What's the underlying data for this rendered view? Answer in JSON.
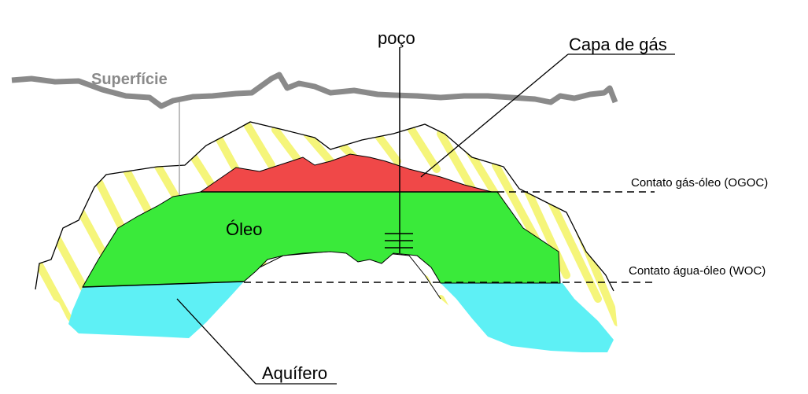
{
  "labels": {
    "surface": "Superfície",
    "well": "poço",
    "gas_cap": "Capa de gás",
    "oil": "Óleo",
    "gas_oil_contact": "Contato gás-óleo (OGOC)",
    "water_oil_contact": "Contato água-óleo (WOC)",
    "aquifer": "Aquífero"
  },
  "colors": {
    "surface": "#8a8a8a",
    "gas": "#f04848",
    "oil": "#3aea3a",
    "water": "#5ef0f5",
    "stripes": "#f5f57a",
    "outline": "#000000"
  }
}
